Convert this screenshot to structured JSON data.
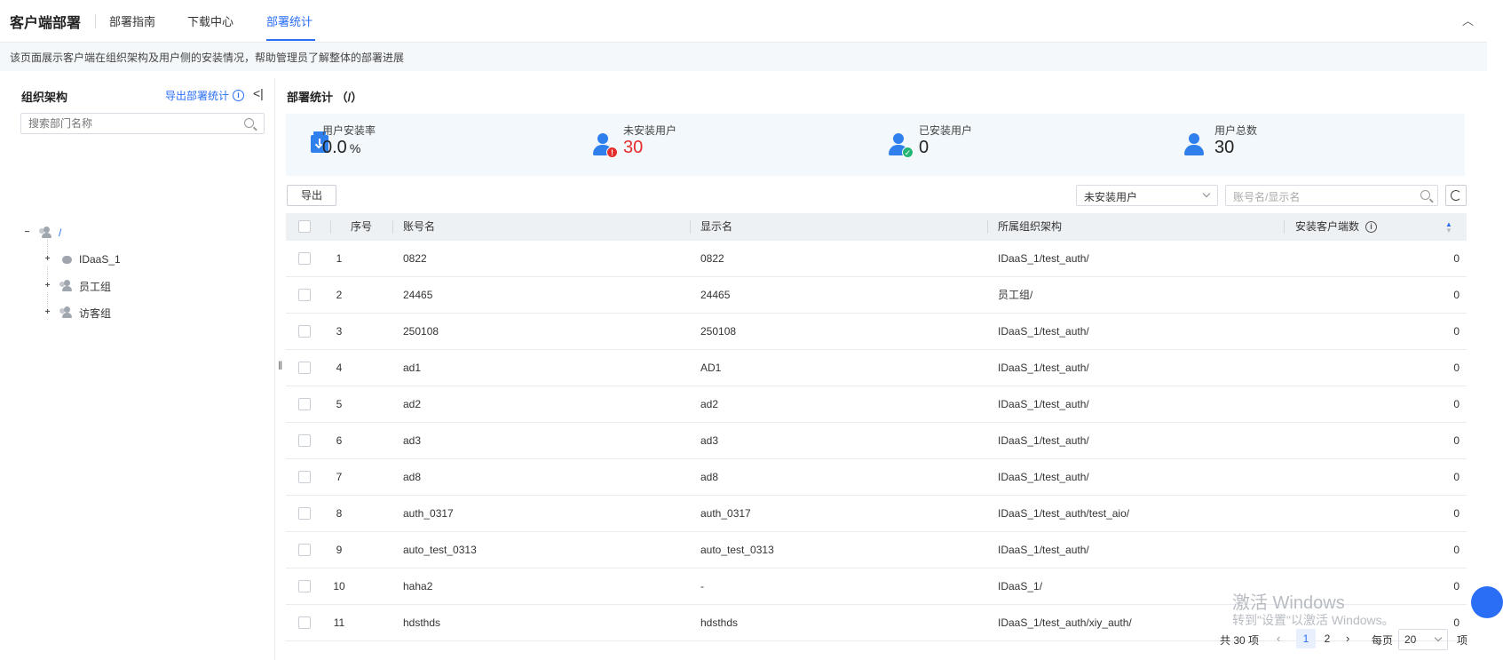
{
  "header": {
    "app_title": "客户端部署",
    "tabs": [
      {
        "label": "部署指南"
      },
      {
        "label": "下载中心"
      },
      {
        "label": "部署统计"
      }
    ],
    "description": "该页面展示客户端在组织架构及用户侧的安装情况，帮助管理员了解整体的部署进展"
  },
  "sidebar": {
    "title": "组织架构",
    "export_label": "导出部署统计",
    "info": "i",
    "collapse": "<|",
    "search_placeholder": "搜索部门名称",
    "tree": {
      "root": {
        "label": "/",
        "toggle": "−"
      },
      "children": [
        {
          "label": "IDaaS_1",
          "toggle": "+"
        },
        {
          "label": "员工组",
          "toggle": "+"
        },
        {
          "label": "访客组",
          "toggle": "+"
        }
      ]
    }
  },
  "main": {
    "title": "部署统计 （/）",
    "stats": [
      {
        "label": "用户安装率",
        "value": "0.0",
        "unit": "%"
      },
      {
        "label": "未安装用户",
        "value": "30",
        "color": "#e52d2d"
      },
      {
        "label": "已安装用户",
        "value": "0"
      },
      {
        "label": "用户总数",
        "value": "30"
      }
    ],
    "export_button": "导出",
    "filter_value": "未安装用户",
    "search_placeholder": "账号名/显示名",
    "columns": [
      "序号",
      "账号名",
      "显示名",
      "所属组织架构",
      "安装客户端数"
    ],
    "rows": [
      {
        "no": "1",
        "account": "0822",
        "display": "0822",
        "org": "IDaaS_1/test_auth/",
        "count": "0"
      },
      {
        "no": "2",
        "account": "24465",
        "display": "24465",
        "org": "员工组/",
        "count": "0"
      },
      {
        "no": "3",
        "account": "250108",
        "display": "250108",
        "org": "IDaaS_1/test_auth/",
        "count": "0"
      },
      {
        "no": "4",
        "account": "ad1",
        "display": "AD1",
        "org": "IDaaS_1/test_auth/",
        "count": "0"
      },
      {
        "no": "5",
        "account": "ad2",
        "display": "ad2",
        "org": "IDaaS_1/test_auth/",
        "count": "0"
      },
      {
        "no": "6",
        "account": "ad3",
        "display": "ad3",
        "org": "IDaaS_1/test_auth/",
        "count": "0"
      },
      {
        "no": "7",
        "account": "ad8",
        "display": "ad8",
        "org": "IDaaS_1/test_auth/",
        "count": "0"
      },
      {
        "no": "8",
        "account": "auth_0317",
        "display": "auth_0317",
        "org": "IDaaS_1/test_auth/test_aio/",
        "count": "0"
      },
      {
        "no": "9",
        "account": "auto_test_0313",
        "display": "auto_test_0313",
        "org": "IDaaS_1/test_auth/",
        "count": "0"
      },
      {
        "no": "10",
        "account": "haha2",
        "display": "-",
        "org": "IDaaS_1/",
        "count": "0"
      },
      {
        "no": "11",
        "account": "hdsthds",
        "display": "hdsthds",
        "org": "IDaaS_1/test_auth/xiy_auth/",
        "count": "0"
      }
    ],
    "pagination": {
      "total": "共 30 项",
      "pages": [
        "1",
        "2"
      ],
      "current": "1",
      "per_page_label": "每页",
      "per_page_value": "20",
      "per_page_suffix": "项"
    }
  },
  "watermark": {
    "line1": "激活 Windows",
    "line2": "转到\"设置\"以激活 Windows。"
  },
  "colors": {
    "accent": "#2a6ef5",
    "danger": "#e52d2d",
    "success": "#22b573"
  }
}
